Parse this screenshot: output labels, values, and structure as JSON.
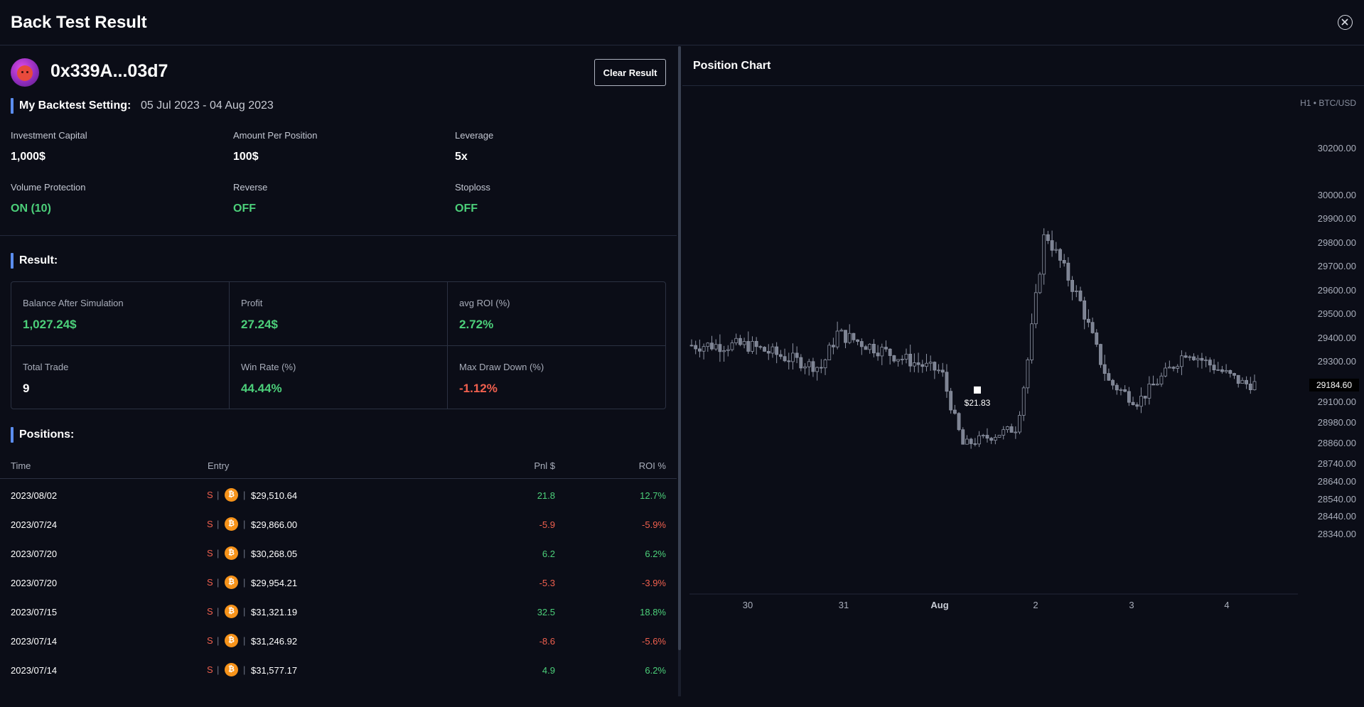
{
  "header": {
    "title": "Back Test Result",
    "close_icon": "close-circle-icon"
  },
  "profile": {
    "avatar_icon": "angry-face-avatar",
    "wallet": "0x339A...03d7",
    "clear_label": "Clear Result"
  },
  "settings": {
    "title": "My Backtest Setting:",
    "date_range": "05 Jul 2023 - 04 Aug 2023",
    "items": [
      {
        "label": "Investment Capital",
        "value": "1,000$"
      },
      {
        "label": "Amount Per Position",
        "value": "100$"
      },
      {
        "label": "Leverage",
        "value": "5x"
      },
      {
        "label": "Volume Protection",
        "value": "ON (10)"
      },
      {
        "label": "Reverse",
        "value": "OFF"
      },
      {
        "label": "Stoploss",
        "value": "OFF"
      }
    ]
  },
  "result": {
    "title": "Result:",
    "stats": [
      {
        "label": "Balance After Simulation",
        "value": "1,027.24$"
      },
      {
        "label": "Profit",
        "value": "27.24$"
      },
      {
        "label": "avg ROI (%)",
        "value": "2.72%"
      },
      {
        "label": "Total Trade",
        "value": "9"
      },
      {
        "label": "Win Rate (%)",
        "value": "44.44%"
      },
      {
        "label": "Max Draw Down (%)",
        "value": "-1.12%"
      }
    ]
  },
  "positions": {
    "title": "Positions:",
    "columns": {
      "time": "Time",
      "entry": "Entry",
      "pnl": "Pnl $",
      "roi": "ROI %"
    },
    "rows": [
      {
        "time": "2023/08/02",
        "side": "S",
        "coin": "₿",
        "price": "$29,510.64",
        "pnl": "21.8",
        "roi": "12.7%"
      },
      {
        "time": "2023/07/24",
        "side": "S",
        "coin": "₿",
        "price": "$29,866.00",
        "pnl": "-5.9",
        "roi": "-5.9%"
      },
      {
        "time": "2023/07/20",
        "side": "S",
        "coin": "₿",
        "price": "$30,268.05",
        "pnl": "6.2",
        "roi": "6.2%"
      },
      {
        "time": "2023/07/20",
        "side": "S",
        "coin": "₿",
        "price": "$29,954.21",
        "pnl": "-5.3",
        "roi": "-3.9%"
      },
      {
        "time": "2023/07/15",
        "side": "S",
        "coin": "₿",
        "price": "$31,321.19",
        "pnl": "32.5",
        "roi": "18.8%"
      },
      {
        "time": "2023/07/14",
        "side": "S",
        "coin": "₿",
        "price": "$31,246.92",
        "pnl": "-8.6",
        "roi": "-5.6%"
      },
      {
        "time": "2023/07/14",
        "side": "S",
        "coin": "₿",
        "price": "$31,577.17",
        "pnl": "4.9",
        "roi": "6.2%"
      }
    ]
  },
  "chart": {
    "title": "Position Chart",
    "symbol_label": "H1 • BTC/USD",
    "last_price_label": "29184.60",
    "marker_label": "$21.83"
  },
  "chart_data": {
    "type": "candlestick",
    "title": "Position Chart",
    "symbol": "H1 • BTC/USD",
    "y_ticks": [
      "30200.00",
      "30000.00",
      "29900.00",
      "29800.00",
      "29700.00",
      "29600.00",
      "29500.00",
      "29400.00",
      "29300.00",
      "29100.00",
      "28980.00",
      "28860.00",
      "28740.00",
      "28640.00",
      "28540.00",
      "28440.00",
      "28340.00"
    ],
    "x_ticks": [
      "30",
      "31",
      "Aug",
      "2",
      "3",
      "4"
    ],
    "last_price": 29184.6,
    "marker": {
      "label": "$21.83",
      "price": 29160
    },
    "approx_close_path": [
      [
        "30",
        29370
      ],
      [
        "31",
        29270
      ],
      [
        "31",
        29420
      ],
      [
        "Aug",
        29250
      ],
      [
        "Aug",
        28850
      ],
      [
        "2",
        28950
      ],
      [
        "2",
        29850
      ],
      [
        "2",
        29550
      ],
      [
        "3",
        29200
      ],
      [
        "3",
        29100
      ],
      [
        "4",
        29350
      ],
      [
        "4",
        29190
      ]
    ]
  }
}
